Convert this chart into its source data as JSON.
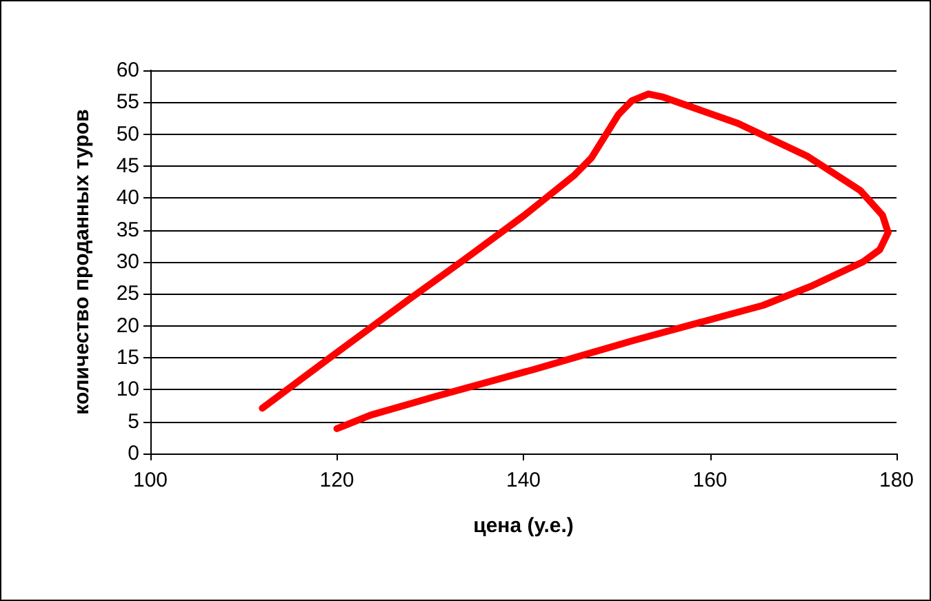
{
  "chart_data": {
    "type": "line",
    "xlabel": "цена (у.е.)",
    "ylabel": "количество проданных туров",
    "x": [
      112,
      119.8,
      127.8,
      133.7,
      140.1,
      145.4,
      147.3,
      150.2,
      151.6,
      153.4,
      155.0,
      163.0,
      170.5,
      176.1,
      178.5,
      179.1,
      178.2,
      176.4,
      171.0,
      165.7,
      161.4,
      151.8,
      141.2,
      130.5,
      123.6,
      120
    ],
    "series": [
      {
        "color": "#ff0000",
        "values": [
          7.1,
          15.6,
          24.2,
          30.4,
          37.3,
          43.5,
          46.3,
          53.1,
          55.2,
          56.3,
          55.8,
          51.7,
          46.5,
          41.2,
          37.3,
          34.6,
          31.9,
          30,
          26.3,
          23.2,
          21.5,
          17.7,
          13.2,
          8.9,
          6,
          3.9
        ]
      }
    ],
    "xlim": [
      100,
      180
    ],
    "xticks": [
      100,
      120,
      140,
      160,
      180
    ],
    "ylim": [
      0,
      60
    ],
    "yticks": [
      0,
      5,
      10,
      15,
      20,
      25,
      30,
      35,
      40,
      45,
      50,
      55,
      60
    ],
    "grid": "y",
    "marker": "none",
    "line_style": "solid"
  }
}
